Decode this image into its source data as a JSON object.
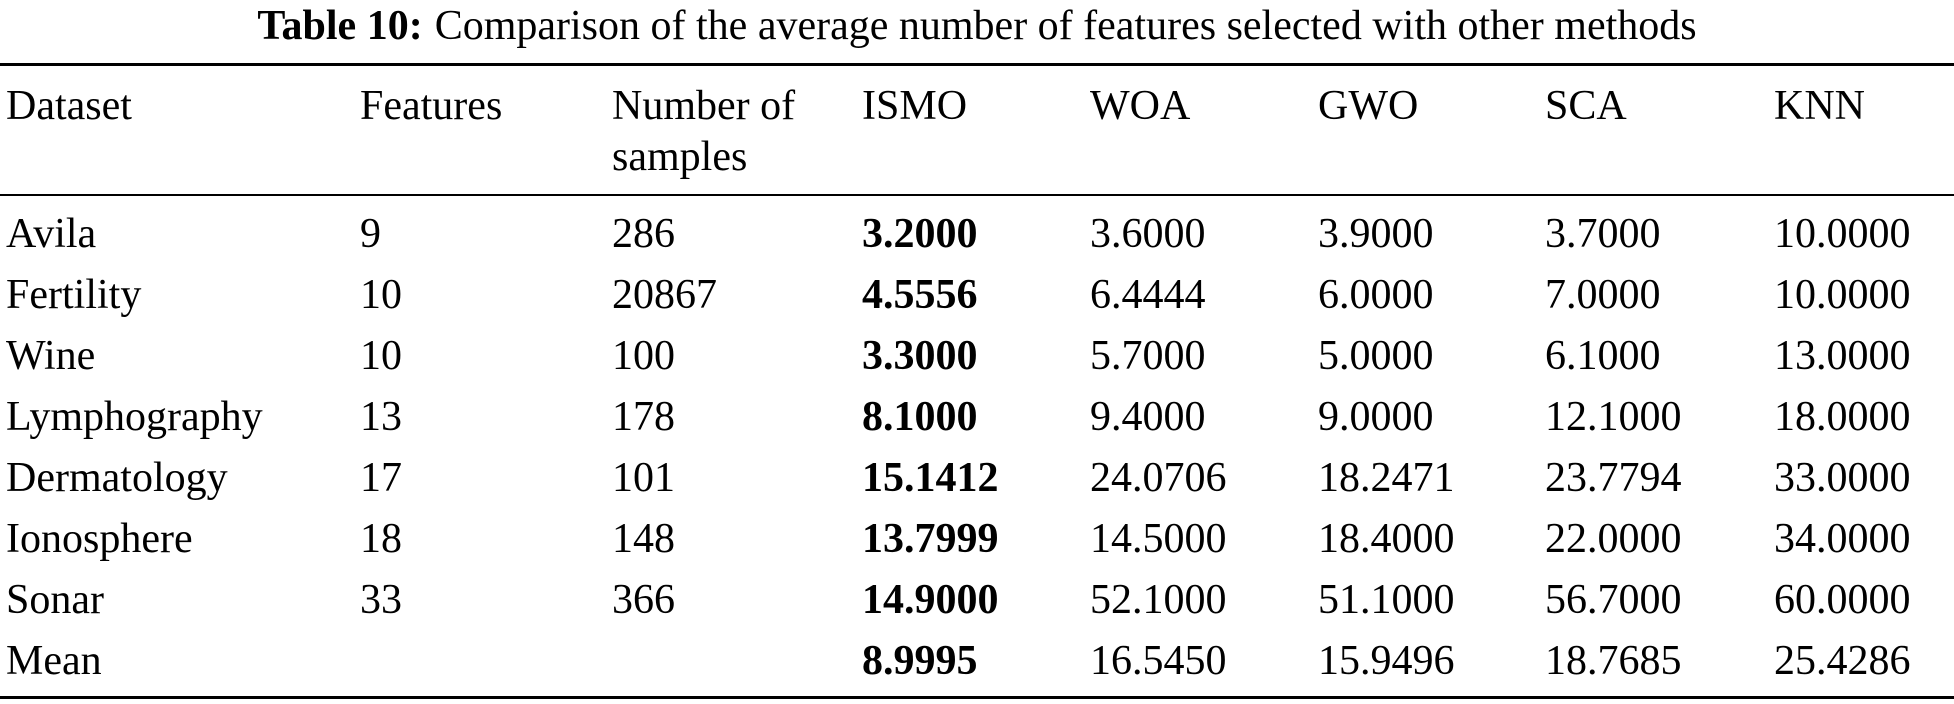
{
  "caption": {
    "label": "Table 10:",
    "text": "Comparison of the average number of features selected with other methods"
  },
  "table": {
    "headers": [
      {
        "line1": "Dataset",
        "line2": ""
      },
      {
        "line1": "Features",
        "line2": ""
      },
      {
        "line1": "Number of",
        "line2": "samples"
      },
      {
        "line1": "ISMO",
        "line2": ""
      },
      {
        "line1": "WOA",
        "line2": ""
      },
      {
        "line1": "GWO",
        "line2": ""
      },
      {
        "line1": "SCA",
        "line2": ""
      },
      {
        "line1": "KNN",
        "line2": ""
      }
    ],
    "rows": [
      [
        "Avila",
        "9",
        "286",
        "3.2000",
        "3.6000",
        "3.9000",
        "3.7000",
        "10.0000"
      ],
      [
        "Fertility",
        "10",
        "20867",
        "4.5556",
        "6.4444",
        "6.0000",
        "7.0000",
        "10.0000"
      ],
      [
        "Wine",
        "10",
        "100",
        "3.3000",
        "5.7000",
        "5.0000",
        "6.1000",
        "13.0000"
      ],
      [
        "Lymphography",
        "13",
        "178",
        "8.1000",
        "9.4000",
        "9.0000",
        "12.1000",
        "18.0000"
      ],
      [
        "Dermatology",
        "17",
        "101",
        "15.1412",
        "24.0706",
        "18.2471",
        "23.7794",
        "33.0000"
      ],
      [
        "Ionosphere",
        "18",
        "148",
        "13.7999",
        "14.5000",
        "18.4000",
        "22.0000",
        "34.0000"
      ],
      [
        "Sonar",
        "33",
        "366",
        "14.9000",
        "52.1000",
        "51.1000",
        "56.7000",
        "60.0000"
      ],
      [
        "Mean",
        "",
        "",
        "8.9995",
        "16.5450",
        "15.9496",
        "18.7685",
        "25.4286"
      ]
    ],
    "bold_column_index": 3
  }
}
